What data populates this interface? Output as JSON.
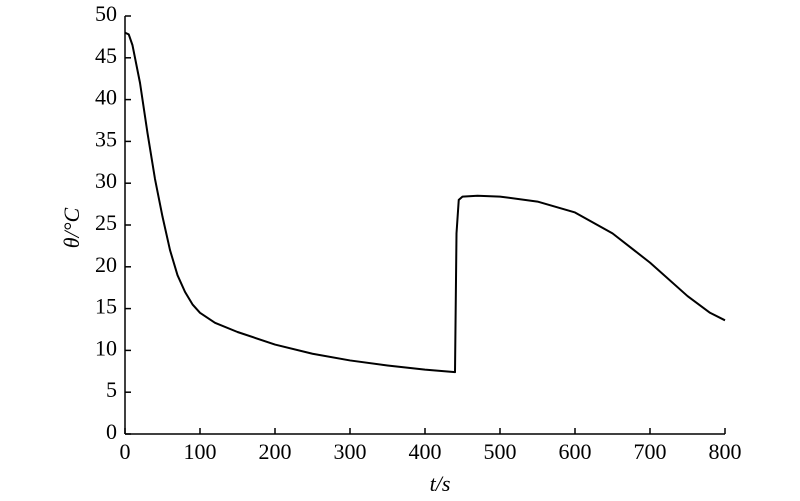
{
  "chart_data": {
    "type": "line",
    "xlabel": "t/s",
    "ylabel": "θ/°C",
    "x": [
      0,
      5,
      10,
      20,
      30,
      40,
      50,
      60,
      70,
      80,
      90,
      100,
      120,
      150,
      200,
      250,
      300,
      350,
      400,
      440,
      442,
      445,
      450,
      470,
      500,
      550,
      600,
      650,
      700,
      750,
      780,
      800
    ],
    "series": [
      {
        "color": "#000000",
        "values": [
          48,
          47.8,
          46.5,
          42,
          36,
          30.5,
          26,
          22,
          19,
          17,
          15.5,
          14.5,
          13.3,
          12.2,
          10.7,
          9.6,
          8.8,
          8.2,
          7.7,
          7.4,
          24,
          28,
          28.4,
          28.5,
          28.4,
          27.8,
          26.5,
          24,
          20.5,
          16.5,
          14.5,
          13.6
        ]
      }
    ],
    "xlim": [
      0,
      800
    ],
    "xticks": [
      0,
      100,
      200,
      300,
      400,
      500,
      600,
      700,
      800
    ],
    "ylim": [
      0,
      50
    ],
    "yticks": [
      0,
      5,
      10,
      15,
      20,
      25,
      30,
      35,
      40,
      45,
      50
    ]
  }
}
